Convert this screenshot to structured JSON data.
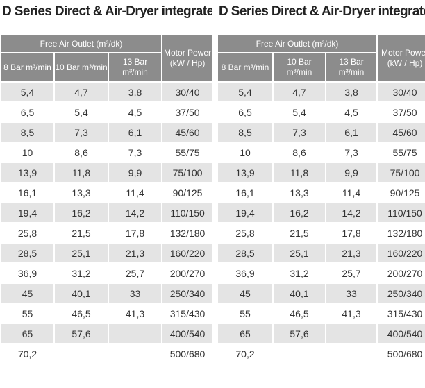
{
  "tables": [
    {
      "title": "D Series Direct & Air-Dryer integrated",
      "header": {
        "group": "Free Air Outlet (m³/dk)",
        "motor": "Motor Power (kW / Hp)",
        "columns": [
          "8 Bar m³/min",
          "10 Bar m³/min",
          "13 Bar m³/min"
        ]
      },
      "rows": [
        [
          "5,4",
          "4,7",
          "3,8",
          "30/40"
        ],
        [
          "6,5",
          "5,4",
          "4,5",
          "37/50"
        ],
        [
          "8,5",
          "7,3",
          "6,1",
          "45/60"
        ],
        [
          "10",
          "8,6",
          "7,3",
          "55/75"
        ],
        [
          "13,9",
          "11,8",
          "9,9",
          "75/100"
        ],
        [
          "16,1",
          "13,3",
          "11,4",
          "90/125"
        ],
        [
          "19,4",
          "16,2",
          "14,2",
          "110/150"
        ],
        [
          "25,8",
          "21,5",
          "17,8",
          "132/180"
        ],
        [
          "28,5",
          "25,1",
          "21,3",
          "160/220"
        ],
        [
          "36,9",
          "31,2",
          "25,7",
          "200/270"
        ],
        [
          "45",
          "40,1",
          "33",
          "250/340"
        ],
        [
          "55",
          "46,5",
          "41,3",
          "315/430"
        ],
        [
          "65",
          "57,6",
          "–",
          "400/540"
        ],
        [
          "70,2",
          "–",
          "–",
          "500/680"
        ]
      ]
    },
    {
      "title": "D Series Direct & Air-Dryer integrated",
      "header": {
        "group": "Free Air Outlet (m³/dk)",
        "motor": "Motor Power (kW / Hp)",
        "columns": [
          "8 Bar m³/min",
          "10 Bar m³/min",
          "13 Bar m³/min"
        ]
      },
      "rows": [
        [
          "5,4",
          "4,7",
          "3,8",
          "30/40"
        ],
        [
          "6,5",
          "5,4",
          "4,5",
          "37/50"
        ],
        [
          "8,5",
          "7,3",
          "6,1",
          "45/60"
        ],
        [
          "10",
          "8,6",
          "7,3",
          "55/75"
        ],
        [
          "13,9",
          "11,8",
          "9,9",
          "75/100"
        ],
        [
          "16,1",
          "13,3",
          "11,4",
          "90/125"
        ],
        [
          "19,4",
          "16,2",
          "14,2",
          "110/150"
        ],
        [
          "25,8",
          "21,5",
          "17,8",
          "132/180"
        ],
        [
          "28,5",
          "25,1",
          "21,3",
          "160/220"
        ],
        [
          "36,9",
          "31,2",
          "25,7",
          "200/270"
        ],
        [
          "45",
          "40,1",
          "33",
          "250/340"
        ],
        [
          "55",
          "46,5",
          "41,3",
          "315/430"
        ],
        [
          "65",
          "57,6",
          "–",
          "400/540"
        ],
        [
          "70,2",
          "–",
          "–",
          "500/680"
        ]
      ]
    }
  ]
}
